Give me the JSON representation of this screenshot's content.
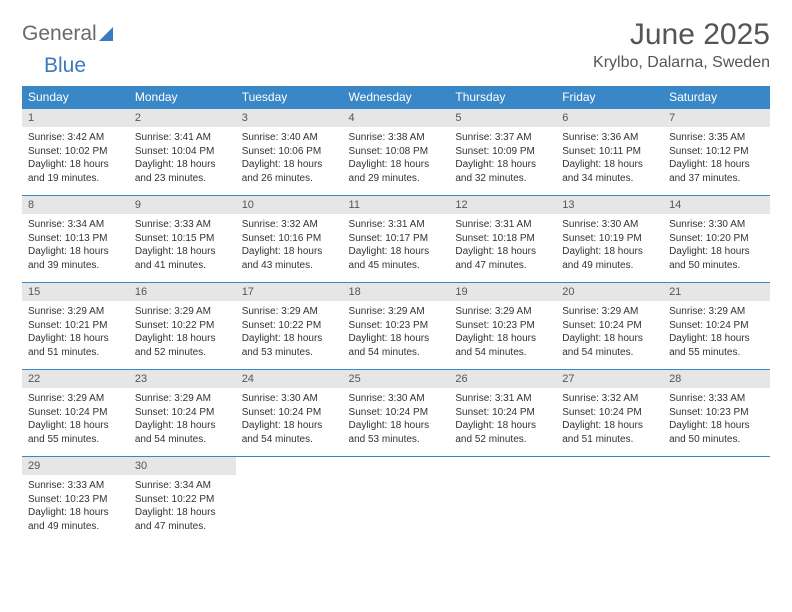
{
  "brand": {
    "part1": "General",
    "part2": "Blue"
  },
  "title": "June 2025",
  "location": "Krylbo, Dalarna, Sweden",
  "colors": {
    "header_bg": "#3a87c7",
    "header_text": "#ffffff",
    "daynum_bg": "#e6e6e6",
    "daynum_text": "#555555",
    "body_text": "#333333",
    "brand_gray": "#6a6a6a",
    "brand_blue": "#3a7bbf",
    "page_bg": "#ffffff"
  },
  "typography": {
    "title_fontsize": 30,
    "location_fontsize": 16,
    "weekday_fontsize": 12,
    "daynum_fontsize": 11,
    "cell_fontsize": 10,
    "logo_fontsize": 21
  },
  "weekdays": [
    "Sunday",
    "Monday",
    "Tuesday",
    "Wednesday",
    "Thursday",
    "Friday",
    "Saturday"
  ],
  "weeks": [
    [
      {
        "num": "1",
        "sunrise": "3:42 AM",
        "sunset": "10:02 PM",
        "daylight": "18 hours and 19 minutes."
      },
      {
        "num": "2",
        "sunrise": "3:41 AM",
        "sunset": "10:04 PM",
        "daylight": "18 hours and 23 minutes."
      },
      {
        "num": "3",
        "sunrise": "3:40 AM",
        "sunset": "10:06 PM",
        "daylight": "18 hours and 26 minutes."
      },
      {
        "num": "4",
        "sunrise": "3:38 AM",
        "sunset": "10:08 PM",
        "daylight": "18 hours and 29 minutes."
      },
      {
        "num": "5",
        "sunrise": "3:37 AM",
        "sunset": "10:09 PM",
        "daylight": "18 hours and 32 minutes."
      },
      {
        "num": "6",
        "sunrise": "3:36 AM",
        "sunset": "10:11 PM",
        "daylight": "18 hours and 34 minutes."
      },
      {
        "num": "7",
        "sunrise": "3:35 AM",
        "sunset": "10:12 PM",
        "daylight": "18 hours and 37 minutes."
      }
    ],
    [
      {
        "num": "8",
        "sunrise": "3:34 AM",
        "sunset": "10:13 PM",
        "daylight": "18 hours and 39 minutes."
      },
      {
        "num": "9",
        "sunrise": "3:33 AM",
        "sunset": "10:15 PM",
        "daylight": "18 hours and 41 minutes."
      },
      {
        "num": "10",
        "sunrise": "3:32 AM",
        "sunset": "10:16 PM",
        "daylight": "18 hours and 43 minutes."
      },
      {
        "num": "11",
        "sunrise": "3:31 AM",
        "sunset": "10:17 PM",
        "daylight": "18 hours and 45 minutes."
      },
      {
        "num": "12",
        "sunrise": "3:31 AM",
        "sunset": "10:18 PM",
        "daylight": "18 hours and 47 minutes."
      },
      {
        "num": "13",
        "sunrise": "3:30 AM",
        "sunset": "10:19 PM",
        "daylight": "18 hours and 49 minutes."
      },
      {
        "num": "14",
        "sunrise": "3:30 AM",
        "sunset": "10:20 PM",
        "daylight": "18 hours and 50 minutes."
      }
    ],
    [
      {
        "num": "15",
        "sunrise": "3:29 AM",
        "sunset": "10:21 PM",
        "daylight": "18 hours and 51 minutes."
      },
      {
        "num": "16",
        "sunrise": "3:29 AM",
        "sunset": "10:22 PM",
        "daylight": "18 hours and 52 minutes."
      },
      {
        "num": "17",
        "sunrise": "3:29 AM",
        "sunset": "10:22 PM",
        "daylight": "18 hours and 53 minutes."
      },
      {
        "num": "18",
        "sunrise": "3:29 AM",
        "sunset": "10:23 PM",
        "daylight": "18 hours and 54 minutes."
      },
      {
        "num": "19",
        "sunrise": "3:29 AM",
        "sunset": "10:23 PM",
        "daylight": "18 hours and 54 minutes."
      },
      {
        "num": "20",
        "sunrise": "3:29 AM",
        "sunset": "10:24 PM",
        "daylight": "18 hours and 54 minutes."
      },
      {
        "num": "21",
        "sunrise": "3:29 AM",
        "sunset": "10:24 PM",
        "daylight": "18 hours and 55 minutes."
      }
    ],
    [
      {
        "num": "22",
        "sunrise": "3:29 AM",
        "sunset": "10:24 PM",
        "daylight": "18 hours and 55 minutes."
      },
      {
        "num": "23",
        "sunrise": "3:29 AM",
        "sunset": "10:24 PM",
        "daylight": "18 hours and 54 minutes."
      },
      {
        "num": "24",
        "sunrise": "3:30 AM",
        "sunset": "10:24 PM",
        "daylight": "18 hours and 54 minutes."
      },
      {
        "num": "25",
        "sunrise": "3:30 AM",
        "sunset": "10:24 PM",
        "daylight": "18 hours and 53 minutes."
      },
      {
        "num": "26",
        "sunrise": "3:31 AM",
        "sunset": "10:24 PM",
        "daylight": "18 hours and 52 minutes."
      },
      {
        "num": "27",
        "sunrise": "3:32 AM",
        "sunset": "10:24 PM",
        "daylight": "18 hours and 51 minutes."
      },
      {
        "num": "28",
        "sunrise": "3:33 AM",
        "sunset": "10:23 PM",
        "daylight": "18 hours and 50 minutes."
      }
    ],
    [
      {
        "num": "29",
        "sunrise": "3:33 AM",
        "sunset": "10:23 PM",
        "daylight": "18 hours and 49 minutes."
      },
      {
        "num": "30",
        "sunrise": "3:34 AM",
        "sunset": "10:22 PM",
        "daylight": "18 hours and 47 minutes."
      },
      null,
      null,
      null,
      null,
      null
    ]
  ],
  "labels": {
    "sunrise": "Sunrise: ",
    "sunset": "Sunset: ",
    "daylight": "Daylight: "
  }
}
